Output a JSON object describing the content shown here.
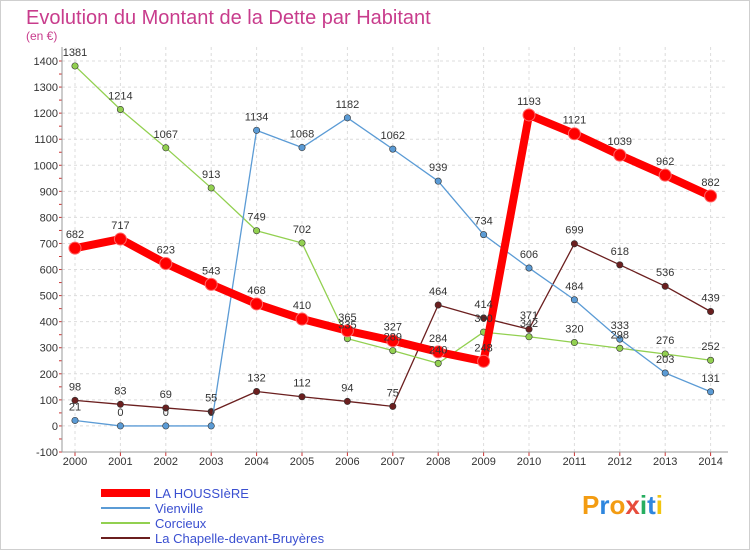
{
  "chart_data": {
    "type": "line",
    "title": "Evolution du Montant de la Dette par Habitant",
    "subtitle": "(en €)",
    "x": [
      "2000",
      "2001",
      "2002",
      "2003",
      "2004",
      "2005",
      "2006",
      "2007",
      "2008",
      "2009",
      "2010",
      "2011",
      "2012",
      "2013",
      "2014"
    ],
    "ylim": [
      -100,
      1400
    ],
    "yticks": [
      -100,
      0,
      100,
      200,
      300,
      400,
      500,
      600,
      700,
      800,
      900,
      1000,
      1100,
      1200,
      1300,
      1400
    ],
    "grid": true,
    "legend_position": "bottom-left",
    "series": [
      {
        "name": "LA HOUSSIèRE",
        "color": "#ff0000",
        "values": [
          682,
          717,
          623,
          543,
          468,
          410,
          365,
          327,
          284,
          248,
          1193,
          1121,
          1039,
          962,
          882
        ]
      },
      {
        "name": "Vienville",
        "color": "#5b9bd5",
        "values": [
          21,
          0,
          0,
          0,
          1134,
          1068,
          1182,
          1062,
          939,
          734,
          606,
          484,
          333,
          203,
          131
        ]
      },
      {
        "name": "Corcieux",
        "color": "#92d050",
        "values": [
          1381,
          1214,
          1067,
          913,
          749,
          702,
          335,
          289,
          240,
          360,
          342,
          320,
          298,
          276,
          252
        ]
      },
      {
        "name": "La Chapelle-devant-Bruyères",
        "color": "#6b1f1f",
        "values": [
          98,
          83,
          69,
          55,
          132,
          112,
          94,
          75,
          464,
          414,
          371,
          699,
          618,
          536,
          439
        ]
      }
    ]
  },
  "logo": {
    "text": "Proxiti",
    "letters": [
      "P",
      "r",
      "o",
      "x",
      "i",
      "t",
      "i"
    ]
  }
}
